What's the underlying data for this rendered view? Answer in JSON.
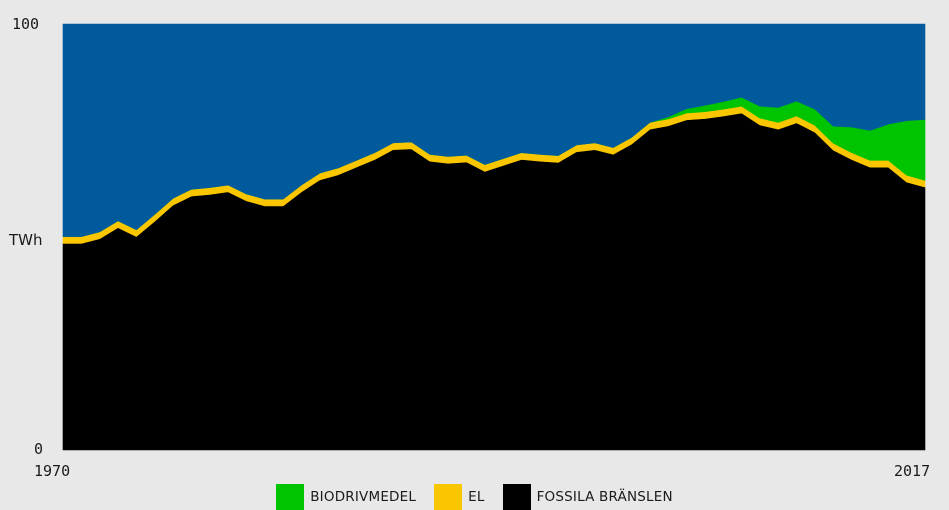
{
  "chart_data": {
    "type": "area",
    "stacked": true,
    "title": "",
    "ylabel": "TWh",
    "xlabel": "",
    "ylim": [
      0,
      100
    ],
    "xlim": [
      1970,
      2017
    ],
    "y_tick_labels": [
      "0",
      "100"
    ],
    "x_tick_labels": [
      "1970",
      "2017"
    ],
    "x": [
      1970,
      1971,
      1972,
      1973,
      1974,
      1975,
      1976,
      1977,
      1978,
      1979,
      1980,
      1981,
      1982,
      1983,
      1984,
      1985,
      1986,
      1987,
      1988,
      1989,
      1990,
      1991,
      1992,
      1993,
      1994,
      1995,
      1996,
      1997,
      1998,
      1999,
      2000,
      2001,
      2002,
      2003,
      2004,
      2005,
      2006,
      2007,
      2008,
      2009,
      2010,
      2011,
      2012,
      2013,
      2014,
      2015,
      2016,
      2017
    ],
    "series": [
      {
        "name": "FOSSILA BRÄNSLEN",
        "color": "#000000",
        "values": [
          48.5,
          48.5,
          49.6,
          52.2,
          50.1,
          53.7,
          57.5,
          59.6,
          60.0,
          60.6,
          58.5,
          57.3,
          57.3,
          60.6,
          63.4,
          64.6,
          66.4,
          68.2,
          70.5,
          70.7,
          67.8,
          67.3,
          67.6,
          65.4,
          66.8,
          68.2,
          67.8,
          67.5,
          70.0,
          70.5,
          69.4,
          71.8,
          75.3,
          76.1,
          77.5,
          77.8,
          78.4,
          79.1,
          76.3,
          75.3,
          76.8,
          74.6,
          70.4,
          68.2,
          66.4,
          66.4,
          62.9,
          61.7
        ]
      },
      {
        "name": "EL",
        "color": "#f9c600",
        "values": [
          1.6,
          1.6,
          1.6,
          1.6,
          1.6,
          1.6,
          1.6,
          1.6,
          1.6,
          1.6,
          1.6,
          1.6,
          1.6,
          1.6,
          1.6,
          1.6,
          1.6,
          1.6,
          1.6,
          1.6,
          1.6,
          1.6,
          1.6,
          1.6,
          1.6,
          1.6,
          1.6,
          1.6,
          1.6,
          1.6,
          1.6,
          1.6,
          1.6,
          1.6,
          1.6,
          1.6,
          1.6,
          1.6,
          1.6,
          1.6,
          1.6,
          1.6,
          1.6,
          1.6,
          1.6,
          1.6,
          1.6,
          1.6
        ]
      },
      {
        "name": "BIODRIVMEDEL",
        "color": "#00c400",
        "values": [
          0,
          0,
          0,
          0,
          0,
          0,
          0,
          0,
          0,
          0,
          0,
          0,
          0,
          0,
          0,
          0,
          0,
          0,
          0,
          0,
          0,
          0,
          0,
          0,
          0,
          0,
          0,
          0,
          0,
          0,
          0,
          0,
          0,
          0.5,
          1.0,
          1.5,
          1.8,
          2.1,
          2.8,
          3.5,
          3.5,
          3.8,
          4.0,
          6.0,
          7.0,
          8.5,
          12.8,
          14.3
        ]
      },
      {
        "name": "",
        "color": "#005a9c",
        "values": [
          49.9,
          49.9,
          48.8,
          46.2,
          48.3,
          44.7,
          40.9,
          38.8,
          38.4,
          37.8,
          39.9,
          41.1,
          41.1,
          37.8,
          35.0,
          33.8,
          32.0,
          30.2,
          27.9,
          27.7,
          30.6,
          31.1,
          30.8,
          33.0,
          31.6,
          30.2,
          30.6,
          30.9,
          28.4,
          27.9,
          29.0,
          26.6,
          23.1,
          21.8,
          19.9,
          19.1,
          18.2,
          17.2,
          19.3,
          19.6,
          18.1,
          20.0,
          24.0,
          24.2,
          25.0,
          23.5,
          22.7,
          22.4
        ]
      }
    ],
    "legend": {
      "placement": "bottom",
      "entries": [
        {
          "label": "BIODRIVMEDEL",
          "color": "#00c400"
        },
        {
          "label": "EL",
          "color": "#f9c600"
        },
        {
          "label": "FOSSILA BRÄNSLEN",
          "color": "#000000"
        }
      ]
    },
    "background": "#e8e8e8",
    "grid": false
  }
}
